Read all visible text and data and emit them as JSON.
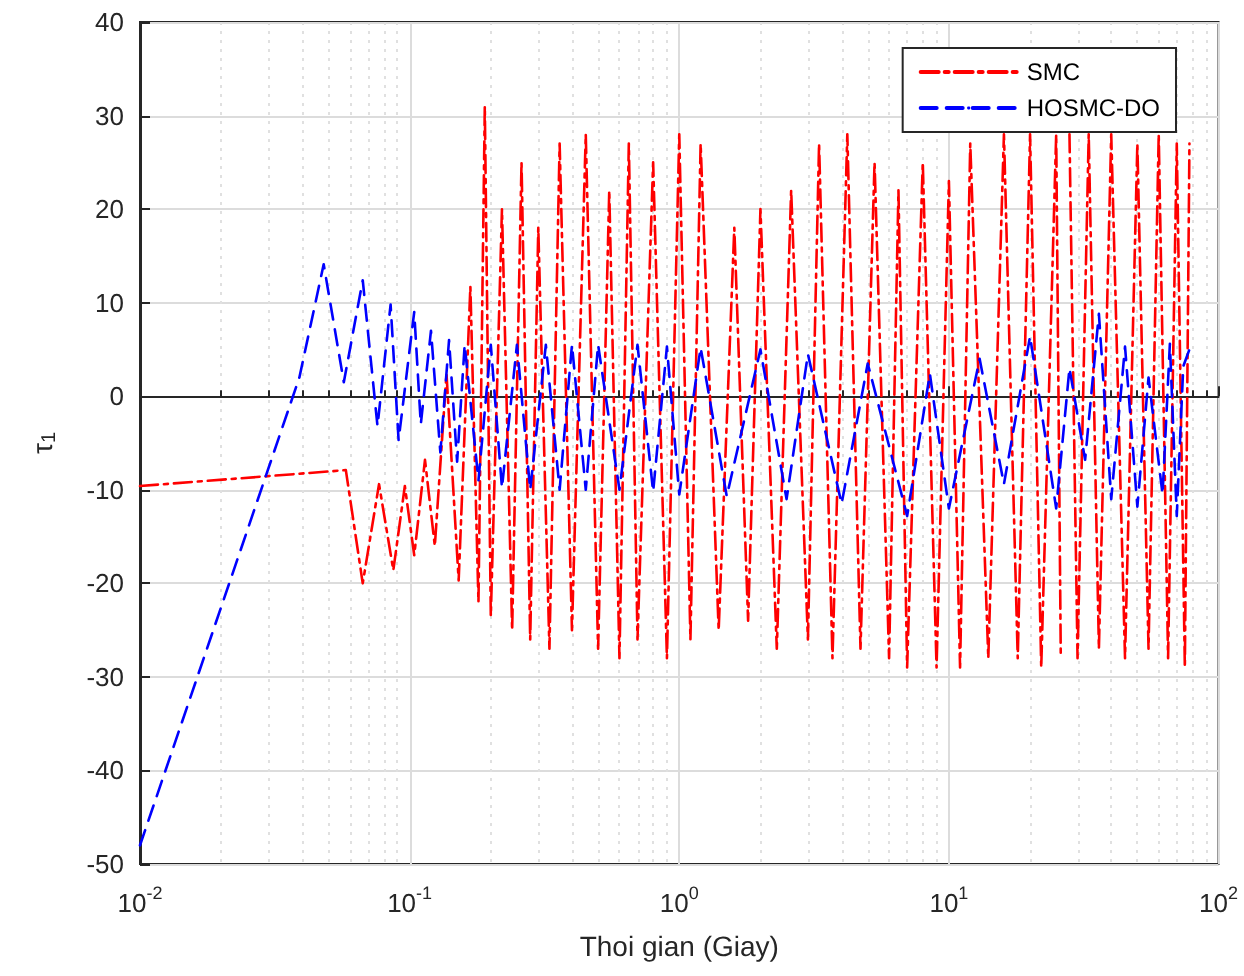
{
  "chart_data": {
    "type": "line",
    "xlabel": "Thoi gian (Giay)",
    "ylabel": "τ$_{1}$",
    "log": "x",
    "grid": true,
    "legend": "top right",
    "marker": "none",
    "xlim": [
      0.01,
      100
    ],
    "ylim": [
      -50,
      40
    ],
    "xticks": [
      {
        "value": 0.01,
        "label": "10$^{-2}$"
      },
      {
        "value": 0.1,
        "label": "10$^{-1}$"
      },
      {
        "value": 1,
        "label": "10$^{0}$"
      },
      {
        "value": 10,
        "label": "10$^{1}$"
      },
      {
        "value": 100,
        "label": "10$^{2}$"
      }
    ],
    "yticks": [
      -50,
      -40,
      -30,
      -20,
      -10,
      0,
      10,
      20,
      30,
      40
    ],
    "series": [
      {
        "name": "SMC",
        "color": "#ff0000",
        "line_style": "dashdot",
        "x": [
          0.01,
          0.058,
          0.067,
          0.077,
          0.087,
          0.096,
          0.104,
          0.114,
          0.124,
          0.137,
          0.152,
          0.168,
          0.18,
          0.19,
          0.2,
          0.22,
          0.24,
          0.26,
          0.28,
          0.3,
          0.33,
          0.36,
          0.4,
          0.45,
          0.5,
          0.55,
          0.6,
          0.65,
          0.7,
          0.8,
          0.9,
          1.0,
          1.1,
          1.2,
          1.4,
          1.6,
          1.8,
          2.0,
          2.3,
          2.6,
          3.0,
          3.3,
          3.7,
          4.2,
          4.7,
          5.3,
          6,
          6.5,
          7,
          8,
          9,
          10,
          11,
          12,
          14,
          16,
          18,
          20,
          22,
          25,
          26,
          27,
          28,
          30,
          33,
          36,
          40,
          45,
          50,
          55,
          60,
          65,
          70,
          75,
          78
        ],
        "values": [
          -9.6,
          -7.9,
          -20,
          -9.4,
          -18.6,
          -9.6,
          -17,
          -6.8,
          -16,
          2.4,
          -19.7,
          11.7,
          -22,
          31,
          -23.5,
          20,
          -25,
          25,
          -26,
          18,
          -27,
          27,
          -25,
          28,
          -27,
          22,
          -28,
          27,
          -26,
          25,
          -28,
          28,
          -26,
          27,
          -25,
          18,
          -24,
          20,
          -27,
          22,
          -26,
          27,
          -28,
          28,
          -27,
          25,
          -28,
          22,
          -29,
          25,
          -29,
          23,
          -29,
          27,
          -28,
          28,
          -28,
          28,
          -29,
          28,
          -28,
          null,
          28,
          -28,
          28,
          -27,
          28,
          -28,
          27,
          -27,
          28,
          -28,
          27,
          -29,
          27
        ]
      },
      {
        "name": "HOSMC-DO",
        "color": "#0000ff",
        "line_style": "dashed",
        "x": [
          0.01,
          0.039,
          0.048,
          0.057,
          0.067,
          0.076,
          0.085,
          0.091,
          0.104,
          0.11,
          0.12,
          0.13,
          0.14,
          0.15,
          0.16,
          0.18,
          0.2,
          0.22,
          0.25,
          0.28,
          0.32,
          0.36,
          0.4,
          0.45,
          0.5,
          0.6,
          0.7,
          0.8,
          0.9,
          1,
          1.2,
          1.5,
          2,
          2.5,
          3,
          4,
          5,
          7,
          8.5,
          10,
          13,
          16,
          20,
          25,
          28,
          32,
          36,
          40,
          45,
          50,
          55,
          62,
          66,
          70,
          74,
          78
        ],
        "values": [
          -48,
          2,
          14.1,
          1.5,
          12.4,
          -3.2,
          9.8,
          -4.7,
          9,
          -3,
          7,
          -6,
          6,
          -7,
          5.5,
          -9,
          5.5,
          -9.8,
          5.5,
          -10,
          5.5,
          -10,
          5.5,
          -10,
          5.5,
          -10,
          5.5,
          -10.2,
          5.3,
          -10.5,
          5.2,
          -10.7,
          5,
          -11,
          4.5,
          -11.5,
          3.5,
          -12.8,
          2.4,
          -12,
          4,
          -9.4,
          6.4,
          -12,
          3,
          -6.8,
          8.8,
          -11,
          5.3,
          -11.8,
          2,
          -10.5,
          5.6,
          -12.8,
          3.2,
          5
        ]
      }
    ]
  }
}
